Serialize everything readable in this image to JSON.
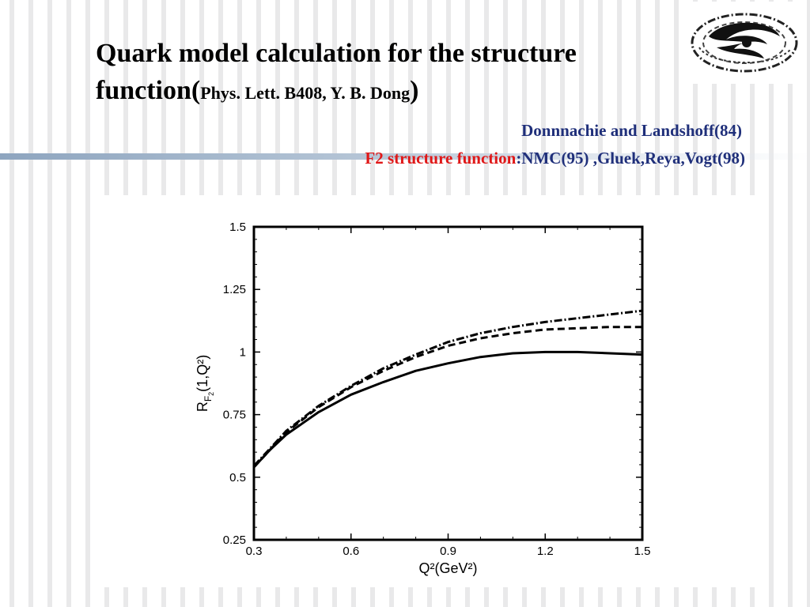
{
  "slide": {
    "title_main": "Quark model calculation for the structure function(",
    "title_cite": "Phys. Lett. B408, Y. B. Dong",
    "title_close": ")",
    "line1": "Donnnachie and Landshoff(84)",
    "line2_red": "F2 structure function",
    "line2_rest": ":NMC(95) ,Gluek,Reya,Vogt(98)"
  },
  "colors": {
    "title": "#000000",
    "subtitle_blue": "#1f2f7a",
    "subtitle_red": "#e01818"
  },
  "chart_data": {
    "type": "line",
    "xlabel": "Q²(GeV²)",
    "ylabel": "R_F2(1,Q²)",
    "xlim": [
      0.3,
      1.5
    ],
    "ylim": [
      0.25,
      1.5
    ],
    "xticks": [
      "0.3",
      "0.6",
      "0.9",
      "1.2",
      "1.5"
    ],
    "yticks": [
      "0.25",
      "0.5",
      "0.75",
      "1",
      "1.25",
      "1.5"
    ],
    "x": [
      0.3,
      0.35,
      0.4,
      0.5,
      0.6,
      0.7,
      0.8,
      0.9,
      1.0,
      1.1,
      1.2,
      1.3,
      1.4,
      1.5
    ],
    "series": [
      {
        "style": "solid",
        "values": [
          0.54,
          0.61,
          0.67,
          0.76,
          0.83,
          0.88,
          0.925,
          0.955,
          0.98,
          0.995,
          1.0,
          1.0,
          0.995,
          0.99
        ]
      },
      {
        "style": "dashed",
        "values": [
          0.54,
          0.61,
          0.68,
          0.78,
          0.86,
          0.925,
          0.98,
          1.025,
          1.055,
          1.075,
          1.09,
          1.095,
          1.1,
          1.1
        ]
      },
      {
        "style": "dashdot",
        "values": [
          0.545,
          0.615,
          0.685,
          0.785,
          0.865,
          0.935,
          0.99,
          1.04,
          1.075,
          1.1,
          1.12,
          1.135,
          1.15,
          1.165
        ]
      }
    ]
  }
}
